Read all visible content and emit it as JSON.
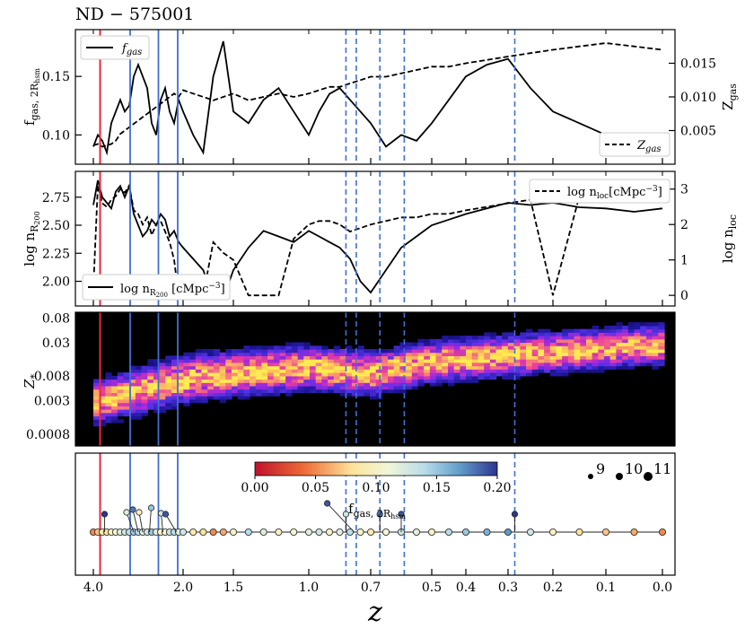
{
  "title": "ND − 575001",
  "colors": {
    "red_line": "#e8283c",
    "solid_blue": "#3f6fd6",
    "dashed_blue": "#3f6fd6",
    "heat_background": "#000000",
    "marker_edge": "#222222"
  },
  "chart_data": [
    {
      "panel": "gas",
      "type": "line",
      "xlabel": "",
      "ylabel": "f_gas, 2R_hsm",
      "ylabel_right": "Z_gas",
      "xlim": [
        4.3,
        -0.05
      ],
      "ylim": [
        0.075,
        0.19
      ],
      "ylim_right": [
        0.0,
        0.02
      ],
      "yticks": [
        0.1,
        0.15
      ],
      "ytick_labels": [
        "0.10",
        "0.15"
      ],
      "yticks_right": [
        0.005,
        0.01,
        0.015
      ],
      "ytick_labels_right": [
        "0.005",
        "0.010",
        "0.015"
      ],
      "legend_left": "f_gas",
      "legend_right": "Z_gas",
      "series": [
        {
          "name": "f_gas",
          "style": "solid",
          "axis": "left",
          "x": [
            4.0,
            3.9,
            3.8,
            3.7,
            3.6,
            3.5,
            3.4,
            3.3,
            3.2,
            3.1,
            3.0,
            2.9,
            2.8,
            2.7,
            2.6,
            2.5,
            2.4,
            2.3,
            2.2,
            2.1,
            2.0,
            1.9,
            1.8,
            1.7,
            1.6,
            1.5,
            1.4,
            1.3,
            1.2,
            1.1,
            1.0,
            0.95,
            0.9,
            0.85,
            0.8,
            0.75,
            0.7,
            0.65,
            0.6,
            0.55,
            0.5,
            0.45,
            0.4,
            0.35,
            0.3,
            0.25,
            0.2,
            0.15,
            0.1,
            0.05,
            0.0
          ],
          "values": [
            0.09,
            0.1,
            0.095,
            0.085,
            0.11,
            0.12,
            0.13,
            0.12,
            0.125,
            0.15,
            0.16,
            0.15,
            0.14,
            0.11,
            0.1,
            0.13,
            0.14,
            0.12,
            0.11,
            0.13,
            0.12,
            0.1,
            0.085,
            0.15,
            0.18,
            0.12,
            0.11,
            0.13,
            0.14,
            0.12,
            0.1,
            0.12,
            0.135,
            0.14,
            0.13,
            0.12,
            0.11,
            0.09,
            0.1,
            0.095,
            0.11,
            0.13,
            0.15,
            0.16,
            0.165,
            0.14,
            0.12,
            0.11,
            0.1,
            0.095,
            0.095
          ]
        },
        {
          "name": "Z_gas",
          "style": "dashed",
          "axis": "right",
          "x": [
            4.0,
            3.9,
            3.8,
            3.7,
            3.6,
            3.5,
            3.4,
            3.3,
            3.2,
            3.1,
            3.0,
            2.9,
            2.8,
            2.7,
            2.6,
            2.5,
            2.4,
            2.3,
            2.2,
            2.1,
            2.0,
            1.9,
            1.8,
            1.7,
            1.6,
            1.5,
            1.4,
            1.3,
            1.2,
            1.1,
            1.0,
            0.95,
            0.9,
            0.85,
            0.8,
            0.75,
            0.7,
            0.65,
            0.6,
            0.55,
            0.5,
            0.45,
            0.4,
            0.35,
            0.3,
            0.25,
            0.2,
            0.15,
            0.1,
            0.05,
            0.0
          ],
          "values": [
            0.0028,
            0.003,
            0.0026,
            0.0028,
            0.003,
            0.0035,
            0.0045,
            0.005,
            0.0055,
            0.006,
            0.0065,
            0.007,
            0.0075,
            0.008,
            0.0085,
            0.009,
            0.0095,
            0.01,
            0.0105,
            0.01,
            0.011,
            0.0105,
            0.01,
            0.0095,
            0.01,
            0.0105,
            0.0095,
            0.01,
            0.0105,
            0.01,
            0.0105,
            0.011,
            0.0115,
            0.0115,
            0.012,
            0.0125,
            0.013,
            0.013,
            0.0135,
            0.014,
            0.0145,
            0.0145,
            0.015,
            0.0155,
            0.016,
            0.0165,
            0.017,
            0.0175,
            0.018,
            0.0175,
            0.017
          ]
        }
      ]
    },
    {
      "panel": "density",
      "type": "line",
      "xlabel": "",
      "ylabel": "log n_R200",
      "ylabel_right": "log n_loc",
      "xlim": [
        4.3,
        -0.05
      ],
      "ylim": [
        1.78,
        2.98
      ],
      "ylim_right": [
        -0.3,
        3.5
      ],
      "yticks": [
        2.0,
        2.25,
        2.5,
        2.75
      ],
      "ytick_labels": [
        "2.00",
        "2.25",
        "2.50",
        "2.75"
      ],
      "yticks_right": [
        0,
        1,
        2,
        3
      ],
      "ytick_labels_right": [
        "0",
        "1",
        "2",
        "3"
      ],
      "legend_left": "log n_R200 [cMpc^-3]",
      "legend_right": "log n_loc [cMpc^-3]",
      "series": [
        {
          "name": "log n_R200",
          "style": "solid",
          "axis": "left",
          "x": [
            4.0,
            3.9,
            3.8,
            3.7,
            3.6,
            3.5,
            3.4,
            3.3,
            3.2,
            3.1,
            3.0,
            2.9,
            2.8,
            2.7,
            2.6,
            2.5,
            2.4,
            2.3,
            2.2,
            2.1,
            2.0,
            1.9,
            1.8,
            1.7,
            1.6,
            1.5,
            1.4,
            1.3,
            1.2,
            1.1,
            1.0,
            0.95,
            0.9,
            0.85,
            0.8,
            0.75,
            0.7,
            0.65,
            0.6,
            0.55,
            0.5,
            0.45,
            0.4,
            0.35,
            0.3,
            0.25,
            0.2,
            0.15,
            0.1,
            0.05,
            0.0
          ],
          "values": [
            2.68,
            2.9,
            2.75,
            2.7,
            2.65,
            2.8,
            2.85,
            2.75,
            2.85,
            2.6,
            2.5,
            2.4,
            2.45,
            2.55,
            2.5,
            2.6,
            2.55,
            2.4,
            2.45,
            2.35,
            2.3,
            2.2,
            2.1,
            1.85,
            1.85,
            2.1,
            2.3,
            2.45,
            2.4,
            2.35,
            2.45,
            2.4,
            2.35,
            2.3,
            2.2,
            2.0,
            1.9,
            2.1,
            2.3,
            2.4,
            2.5,
            2.55,
            2.6,
            2.65,
            2.7,
            2.68,
            2.7,
            2.66,
            2.65,
            2.62,
            2.65
          ]
        },
        {
          "name": "log n_loc",
          "style": "dashed",
          "axis": "right",
          "x": [
            4.0,
            3.9,
            3.8,
            3.7,
            3.6,
            3.5,
            3.4,
            3.3,
            3.2,
            3.1,
            3.0,
            2.9,
            2.8,
            2.7,
            2.6,
            2.5,
            2.4,
            2.3,
            2.2,
            2.1,
            2.0,
            1.9,
            1.8,
            1.7,
            1.6,
            1.5,
            1.4,
            1.3,
            1.2,
            1.1,
            1.0,
            0.95,
            0.9,
            0.85,
            0.8,
            0.75,
            0.7,
            0.65,
            0.6,
            0.55,
            0.5,
            0.45,
            0.4,
            0.35,
            0.3,
            0.25,
            0.2,
            0.15,
            0.1,
            0.05,
            0.0
          ],
          "values": [
            0.2,
            3.1,
            2.6,
            2.5,
            2.7,
            2.8,
            3.0,
            2.9,
            3.1,
            2.4,
            2.3,
            2.0,
            2.2,
            1.7,
            2.0,
            2.1,
            1.8,
            1.5,
            1.0,
            0.0,
            0.0,
            0.0,
            0.0,
            1.5,
            1.2,
            1.0,
            0.0,
            0.0,
            0.0,
            1.6,
            2.0,
            2.1,
            2.1,
            2.0,
            1.8,
            1.9,
            2.0,
            2.1,
            2.2,
            2.2,
            2.3,
            2.3,
            2.4,
            2.5,
            2.6,
            2.7,
            0.0,
            2.8,
            2.8,
            2.8,
            2.7
          ]
        }
      ]
    },
    {
      "panel": "metallicity",
      "type": "heatmap",
      "xlabel": "",
      "ylabel": "Z_*",
      "xlim": [
        4.3,
        -0.05
      ],
      "ylim_log10": [
        -3.3,
        -1.0
      ],
      "yticks": [
        0.0008,
        0.003,
        0.008,
        0.03,
        0.08
      ],
      "ytick_labels": [
        "0.0008",
        "0.003",
        "0.008",
        "0.03",
        "0.08"
      ],
      "ridge": [
        {
          "z": 4.0,
          "logZ_center": -2.55,
          "width": 0.35
        },
        {
          "z": 3.0,
          "logZ_center": -2.35,
          "width": 0.4
        },
        {
          "z": 2.0,
          "logZ_center": -2.15,
          "width": 0.4
        },
        {
          "z": 1.0,
          "logZ_center": -1.95,
          "width": 0.38
        },
        {
          "z": 0.7,
          "logZ_center": -2.05,
          "width": 0.38
        },
        {
          "z": 0.5,
          "logZ_center": -1.85,
          "width": 0.35
        },
        {
          "z": 0.3,
          "logZ_center": -1.75,
          "width": 0.35
        },
        {
          "z": 0.0,
          "logZ_center": -1.55,
          "width": 0.33
        }
      ]
    },
    {
      "panel": "merger_tree",
      "type": "scatter",
      "xlabel": "z",
      "xlim": [
        4.3,
        -0.05
      ],
      "xticks": [
        4.0,
        2.0,
        1.5,
        1.0,
        0.7,
        0.5,
        0.4,
        0.3,
        0.2,
        0.1,
        0.0
      ],
      "xtick_labels": [
        "4.0",
        "2.0",
        "1.5",
        "1.0",
        "0.7",
        "0.5",
        "0.4",
        "0.3",
        "0.2",
        "0.1",
        "0.0"
      ],
      "colorbar": {
        "label": "f_gas, 2R_hsm",
        "min": 0.0,
        "max": 0.2,
        "ticks": [
          0.0,
          0.05,
          0.1,
          0.15,
          0.2
        ],
        "tick_labels": [
          "0.00",
          "0.05",
          "0.10",
          "0.15",
          "0.20"
        ]
      },
      "size_legend": [
        "9",
        "10",
        "11"
      ],
      "main_branch_z": [
        4.0,
        3.9,
        3.8,
        3.7,
        3.6,
        3.5,
        3.4,
        3.3,
        3.2,
        3.1,
        3.0,
        2.9,
        2.8,
        2.7,
        2.6,
        2.5,
        2.4,
        2.3,
        2.2,
        2.1,
        2.0,
        1.9,
        1.8,
        1.7,
        1.6,
        1.5,
        1.4,
        1.3,
        1.2,
        1.1,
        1.0,
        0.95,
        0.9,
        0.85,
        0.8,
        0.75,
        0.7,
        0.65,
        0.6,
        0.55,
        0.5,
        0.45,
        0.4,
        0.35,
        0.3,
        0.25,
        0.2,
        0.15,
        0.1,
        0.05,
        0.0
      ],
      "main_branch_fgas": [
        0.05,
        0.07,
        0.09,
        0.08,
        0.1,
        0.11,
        0.12,
        0.13,
        0.14,
        0.15,
        0.14,
        0.12,
        0.13,
        0.15,
        0.12,
        0.1,
        0.11,
        0.13,
        0.14,
        0.12,
        0.13,
        0.09,
        0.08,
        0.05,
        0.06,
        0.1,
        0.14,
        0.12,
        0.1,
        0.11,
        0.12,
        0.13,
        0.1,
        0.12,
        0.14,
        0.1,
        0.09,
        0.11,
        0.13,
        0.12,
        0.1,
        0.14,
        0.15,
        0.16,
        0.17,
        0.13,
        0.1,
        0.08,
        0.07,
        0.06,
        0.05
      ],
      "mergers": [
        {
          "z": 3.75,
          "fgas": 0.2
        },
        {
          "z": 3.1,
          "fgas": 0.12
        },
        {
          "z": 3.0,
          "fgas": 0.18
        },
        {
          "z": 2.9,
          "fgas": 0.1
        },
        {
          "z": 2.75,
          "fgas": 0.15
        },
        {
          "z": 2.45,
          "fgas": 0.13
        },
        {
          "z": 2.15,
          "fgas": 0.19
        },
        {
          "z": 0.82,
          "fgas": 0.13
        },
        {
          "z": 0.78,
          "fgas": 0.19
        },
        {
          "z": 0.67,
          "fgas": 0.18
        },
        {
          "z": 0.6,
          "fgas": 0.19
        },
        {
          "z": 0.285,
          "fgas": 0.2
        }
      ]
    }
  ],
  "vertical_lines": {
    "red_z": [
      3.85
    ],
    "solid_blue_z": [
      3.18,
      2.55,
      2.12
    ],
    "dashed_blue_z": [
      0.82,
      0.77,
      0.67,
      0.59,
      0.285
    ]
  }
}
